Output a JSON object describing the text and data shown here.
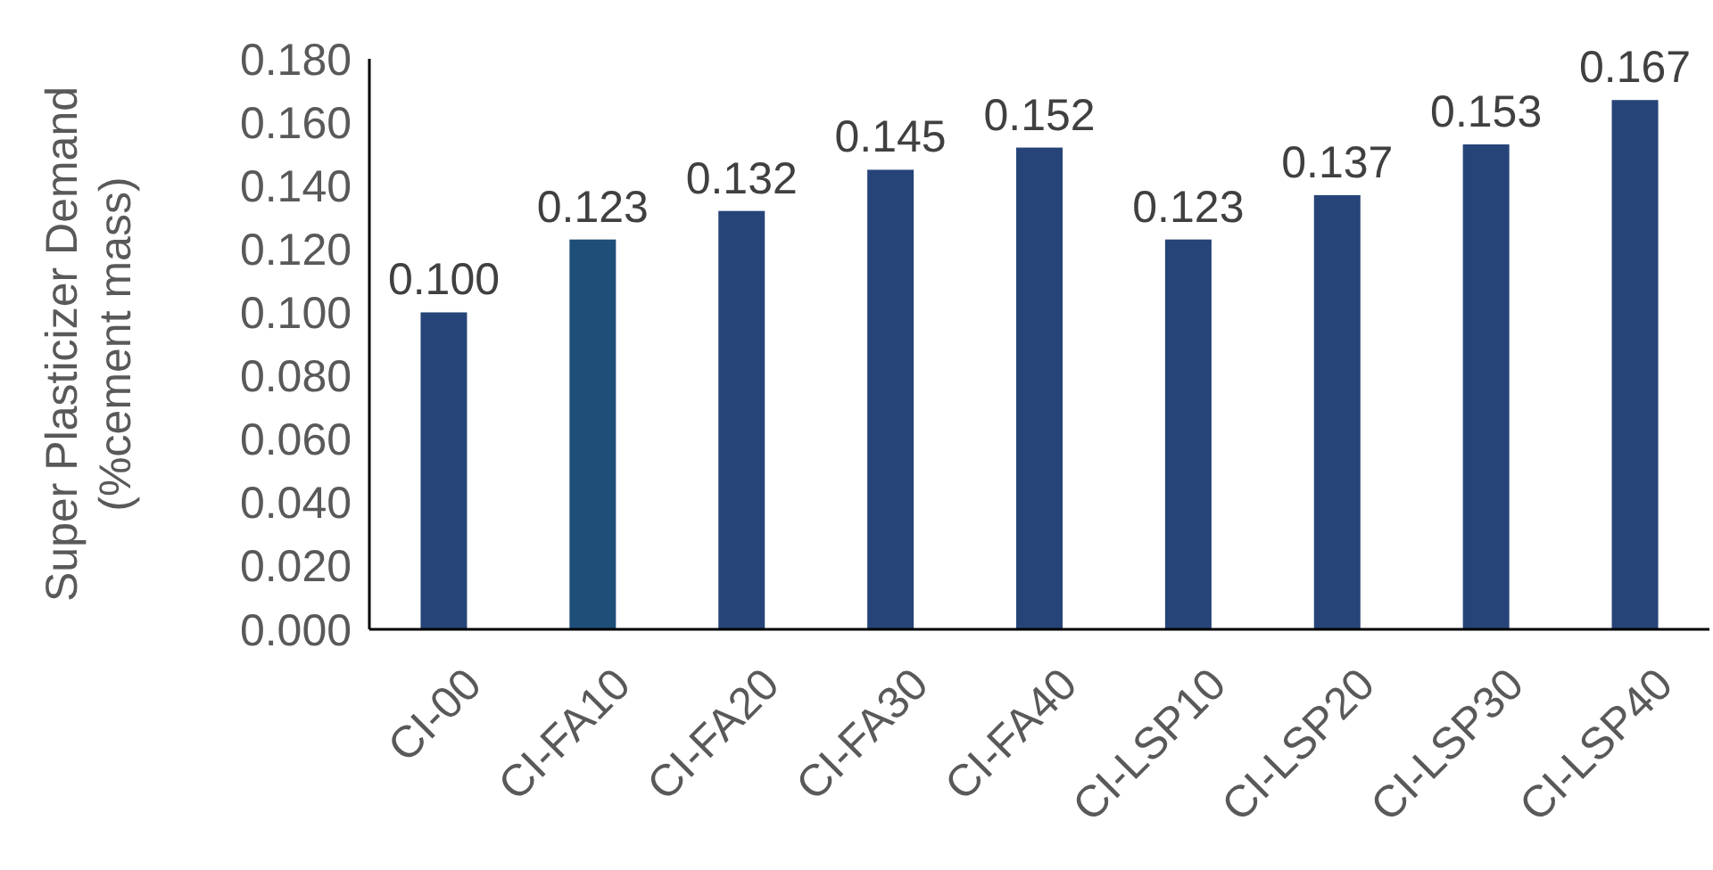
{
  "chart_data": {
    "type": "bar",
    "ylabel": "Super Plasticizer Demand\n(%cement mass)",
    "categories": [
      "CI-00",
      "CI-FA10",
      "CI-FA20",
      "CI-FA30",
      "CI-FA40",
      "CI-LSP10",
      "CI-LSP20",
      "CI-LSP30",
      "CI-LSP40"
    ],
    "values": [
      0.1,
      0.123,
      0.132,
      0.145,
      0.152,
      0.123,
      0.137,
      0.153,
      0.167
    ],
    "colors": [
      "#264478",
      "#1f4e79",
      "#264478",
      "#264478",
      "#264478",
      "#264478",
      "#264478",
      "#264478",
      "#264478"
    ],
    "value_labels": [
      "0.100",
      "0.123",
      "0.132",
      "0.145",
      "0.152",
      "0.123",
      "0.137",
      "0.153",
      "0.167"
    ],
    "ylim": [
      0,
      0.18
    ],
    "yticks": [
      {
        "value": 0,
        "label": "0.000"
      },
      {
        "value": 0.02,
        "label": "0.020"
      },
      {
        "value": 0.04,
        "label": "0.040"
      },
      {
        "value": 0.06,
        "label": "0.060"
      },
      {
        "value": 0.08,
        "label": "0.080"
      },
      {
        "value": 0.1,
        "label": "0.100"
      },
      {
        "value": 0.12,
        "label": "0.120"
      },
      {
        "value": 0.14,
        "label": "0.140"
      },
      {
        "value": 0.16,
        "label": "0.160"
      },
      {
        "value": 0.18,
        "label": "0.180"
      }
    ],
    "grid": false
  }
}
